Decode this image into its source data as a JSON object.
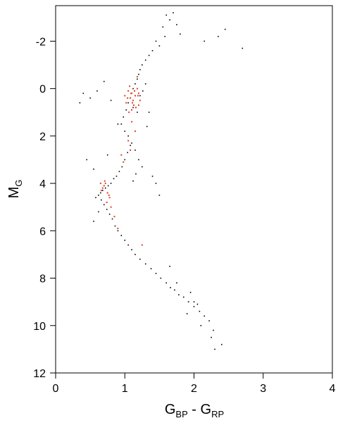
{
  "chart_data": {
    "type": "scatter",
    "title": "",
    "xlabel": "G_BP - G_RP",
    "xlabel_parts": {
      "main1": "G",
      "sub1": "BP",
      "sep": " - ",
      "main2": "G",
      "sub2": "RP"
    },
    "ylabel": "M_G",
    "ylabel_parts": {
      "main": "M",
      "sub": "G"
    },
    "xlim": [
      0,
      4
    ],
    "ylim": [
      12,
      -3.5
    ],
    "y_inverted": true,
    "xticks": [
      0,
      1,
      2,
      3,
      4
    ],
    "xtick_labels": [
      "0",
      "1",
      "2",
      "3",
      "4"
    ],
    "yticks": [
      -2,
      0,
      2,
      4,
      6,
      8,
      10,
      12
    ],
    "ytick_labels": [
      "-2",
      "0",
      "2",
      "4",
      "6",
      "8",
      "10",
      "12"
    ],
    "grid": false,
    "legend": "none",
    "series": [
      {
        "color": "#000000",
        "values_description": "CMD sample points",
        "x": [
          1.6,
          1.65,
          1.7,
          1.75,
          1.55,
          1.8,
          1.58,
          1.45,
          1.5,
          1.4,
          1.35,
          1.3,
          1.25,
          1.22,
          1.2,
          1.18,
          1.15,
          1.12,
          1.1,
          1.08,
          1.05,
          1.12,
          1.18,
          1.22,
          1.26,
          1.3,
          1.02,
          0.98,
          0.95,
          1.0,
          1.05,
          1.1,
          1.15,
          1.2,
          1.25,
          1.16,
          1.12,
          1.08,
          1.04,
          1.0,
          0.96,
          0.92,
          0.88,
          0.84,
          0.8,
          0.76,
          0.72,
          0.68,
          0.65,
          0.62,
          0.66,
          0.7,
          0.74,
          0.78,
          0.82,
          0.86,
          0.9,
          0.95,
          1.0,
          1.05,
          1.1,
          1.15,
          1.22,
          1.3,
          1.38,
          1.45,
          1.52,
          1.6,
          1.66,
          1.72,
          1.78,
          1.85,
          1.92,
          2.0,
          2.08,
          2.15,
          2.22,
          2.28,
          2.1,
          2.25,
          2.4,
          2.3,
          2.05,
          1.95,
          1.9,
          2.35,
          2.45,
          2.7,
          2.15,
          0.9,
          0.6,
          0.7,
          0.5,
          0.4,
          0.35,
          0.55,
          0.45,
          0.8,
          0.75,
          1.35,
          1.4,
          1.32,
          1.45,
          1.5,
          0.58,
          0.62,
          0.55,
          1.65,
          1.75,
          2.0
        ],
        "y": [
          -3.1,
          -2.9,
          -3.2,
          -2.7,
          -2.6,
          -2.3,
          -2.2,
          -2.0,
          -1.8,
          -1.6,
          -1.4,
          -1.2,
          -1.0,
          -0.8,
          -0.6,
          -0.4,
          -0.2,
          0.0,
          0.2,
          0.4,
          0.6,
          0.8,
          1.0,
          0.3,
          0.1,
          -0.2,
          0.9,
          1.2,
          1.5,
          1.8,
          2.0,
          2.3,
          2.6,
          3.0,
          3.3,
          3.6,
          3.9,
          2.4,
          2.7,
          3.0,
          3.3,
          3.5,
          3.7,
          3.8,
          4.0,
          4.1,
          4.2,
          4.3,
          4.4,
          4.5,
          4.7,
          4.9,
          5.1,
          5.3,
          5.5,
          5.8,
          6.0,
          6.2,
          6.4,
          6.6,
          6.8,
          7.0,
          7.2,
          7.4,
          7.6,
          7.8,
          8.0,
          8.2,
          8.4,
          8.5,
          8.7,
          8.8,
          9.0,
          9.2,
          9.4,
          9.6,
          9.8,
          10.2,
          10.0,
          10.5,
          10.8,
          11.0,
          9.1,
          8.6,
          9.5,
          -2.2,
          -2.5,
          -1.7,
          -2.0,
          1.5,
          0.1,
          -0.3,
          0.4,
          0.2,
          0.6,
          3.4,
          3.0,
          0.5,
          2.8,
          1.0,
          3.7,
          1.6,
          4.0,
          4.5,
          4.6,
          5.2,
          5.6,
          7.5,
          8.2,
          9.0
        ]
      },
      {
        "color": "#e04020",
        "values_description": "dense red clusters",
        "x": [
          1.05,
          1.1,
          1.15,
          1.08,
          1.12,
          1.18,
          1.02,
          1.2,
          1.0,
          1.13,
          1.07,
          1.16,
          1.1,
          1.04,
          1.22,
          1.06,
          1.14,
          1.09,
          1.11,
          1.19,
          0.72,
          0.68,
          0.75,
          0.7,
          0.66,
          0.78,
          0.74,
          0.8,
          0.71,
          0.77,
          1.1,
          1.15,
          1.05,
          1.08,
          0.95,
          0.98,
          0.85,
          0.9,
          0.65,
          1.25,
          1.18,
          1.2
        ],
        "y": [
          0.1,
          0.2,
          0.3,
          0.4,
          0.5,
          0.0,
          0.6,
          0.2,
          0.3,
          0.7,
          -0.1,
          0.8,
          0.9,
          0.4,
          0.5,
          1.0,
          0.1,
          0.2,
          0.6,
          0.3,
          4.0,
          4.2,
          4.4,
          4.1,
          4.3,
          4.6,
          4.8,
          5.0,
          3.9,
          4.5,
          1.4,
          1.8,
          2.2,
          2.6,
          2.8,
          3.1,
          5.4,
          5.9,
          4.0,
          6.6,
          -0.5,
          0.7
        ]
      }
    ]
  }
}
